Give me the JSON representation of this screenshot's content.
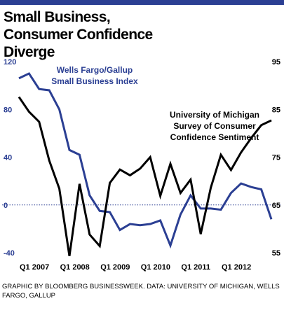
{
  "chart_data": {
    "type": "line",
    "title": "Small Business, Consumer Confidence Diverge",
    "source": "GRAPHIC BY BLOOMBERG BUSINESSWEEK. DATA: UNIVERSITY OF MICHIGAN, WELLS FARGO, GALLUP",
    "categories": [
      "Q1 2007",
      null,
      null,
      null,
      "Q1 2008",
      null,
      null,
      null,
      "Q1 2009",
      null,
      null,
      null,
      "Q1 2010",
      null,
      null,
      null,
      "Q1 2011",
      null,
      null,
      null,
      "Q1 2012",
      null,
      null,
      null,
      null,
      null
    ],
    "series": [
      {
        "name": "Wells Fargo/Gallup Small Business Index",
        "color": "#2b3f93",
        "axis": "y",
        "values": [
          106,
          110,
          97,
          96,
          80,
          46,
          42,
          8,
          -5,
          -6,
          -21,
          -16,
          -17,
          -16,
          -13,
          -34,
          -8,
          8,
          -3,
          -3,
          -4,
          10,
          18,
          15,
          13,
          -12
        ]
      },
      {
        "name": "University of Michigan Survey of Consumer Confidence Sentiment",
        "color": "#000000",
        "axis": "y2",
        "values": [
          87.6,
          84.5,
          82.4,
          74.3,
          68.4,
          54.3,
          69.4,
          58.8,
          56.4,
          69.6,
          72.4,
          71.2,
          72.6,
          75.0,
          66.9,
          73.6,
          67.5,
          70.3,
          58.9,
          68.6,
          75.5,
          72.3,
          76.0,
          79.0,
          81.7,
          82.7
        ]
      }
    ],
    "ylim": [
      -40,
      120
    ],
    "yticks": [
      -40,
      0,
      40,
      80,
      120
    ],
    "y2lim": [
      55,
      95
    ],
    "y2ticks": [
      55,
      65,
      75,
      85,
      95
    ],
    "zero_line": true
  }
}
